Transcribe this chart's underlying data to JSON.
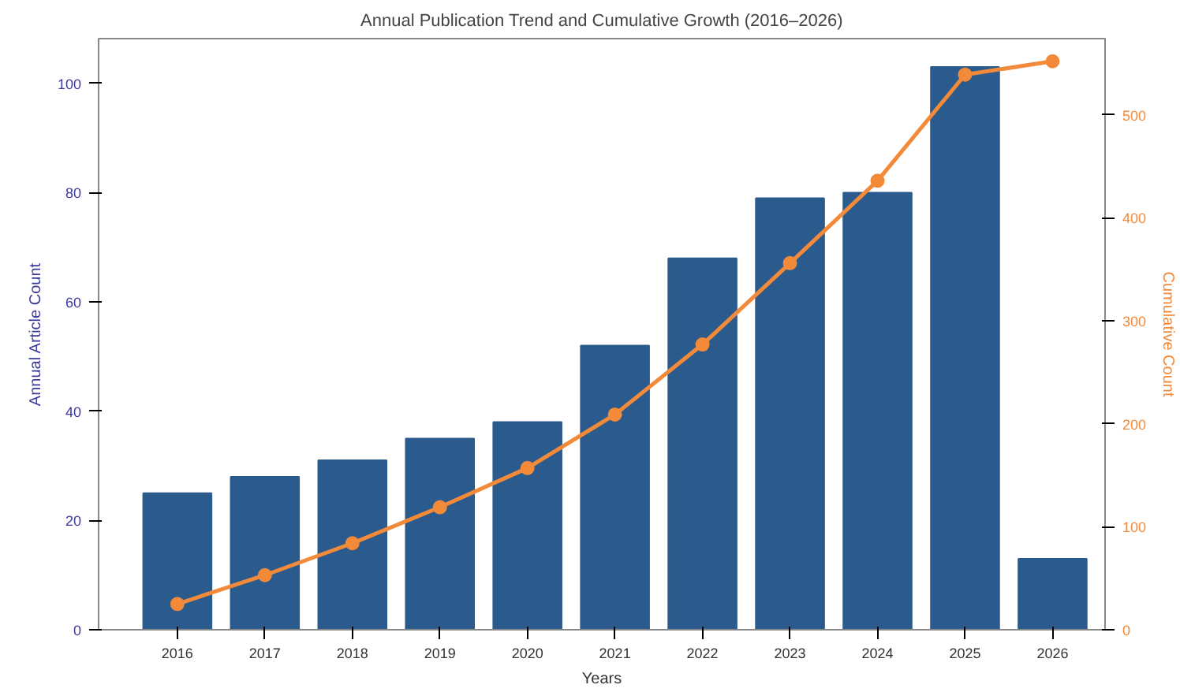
{
  "chart_data": {
    "type": "bar",
    "title": "Annual Publication Trend and Cumulative Growth (2016–2026)",
    "xlabel": "Years",
    "ylabel": "Annual Article Count",
    "y2label": "Cumulative Count",
    "categories": [
      "2016",
      "2017",
      "2018",
      "2019",
      "2020",
      "2021",
      "2022",
      "2023",
      "2024",
      "2025",
      "2026"
    ],
    "series": [
      {
        "color": "#2b5b8c",
        "values": [
          25,
          28,
          31,
          35,
          38,
          52,
          68,
          79,
          80,
          103,
          13
        ]
      },
      {
        "type": "line",
        "axis": "y2",
        "color": "#f28a3a",
        "marker": "circle",
        "values": [
          25,
          53,
          84,
          119,
          157,
          209,
          277,
          356,
          436,
          539,
          552
        ]
      }
    ],
    "ylim": [
      0,
      108.2
    ],
    "yticks": [
      0,
      20,
      40,
      60,
      80,
      100
    ],
    "y2lim": [
      0,
      574
    ],
    "y2ticks": [
      0,
      100,
      200,
      300,
      400,
      500
    ],
    "grid": false
  }
}
